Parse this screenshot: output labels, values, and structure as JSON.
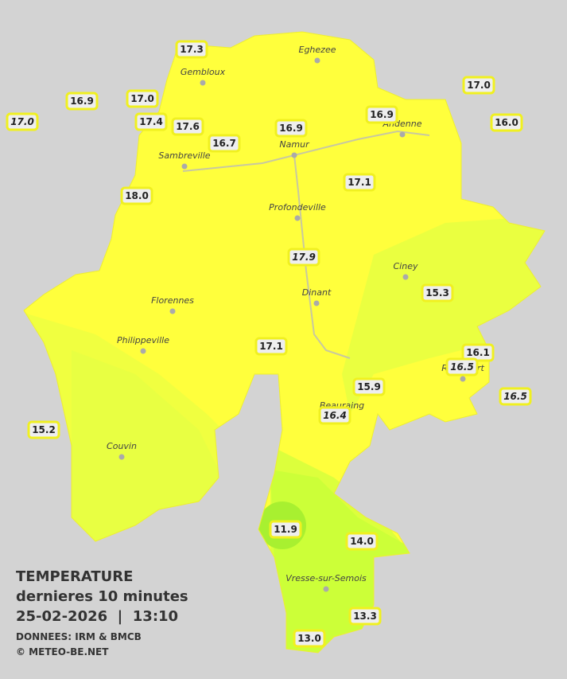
{
  "legend": {
    "title": "TEMPERATURE",
    "subtitle": "dernieres 10 minutes",
    "timestamp": "25-02-2026  |  13:10",
    "source": "DONNEES: IRM & BMCB",
    "copyright": "© METEO-BE.NET"
  },
  "cities": [
    "Eghezee",
    "Gembloux",
    "Andenne",
    "Namur",
    "Sambreville",
    "Profondeville",
    "Ciney",
    "Dinant",
    "Florennes",
    "Philippeville",
    "Couvin",
    "Vresse-sur-Semois",
    "Rochefort",
    "Beauraing"
  ],
  "stations": [
    "17.3",
    "16.9",
    "17.0",
    "17.0",
    "17.4",
    "17.6",
    "16.7",
    "16.9",
    "16.9",
    "17.0",
    "16.0",
    "18.0",
    "17.1",
    "17.9",
    "15.3",
    "17.1",
    "16.1",
    "16.5",
    "16.5",
    "15.9",
    "16.4",
    "15.2",
    "11.9",
    "14.0",
    "13.3",
    "13.0"
  ]
}
